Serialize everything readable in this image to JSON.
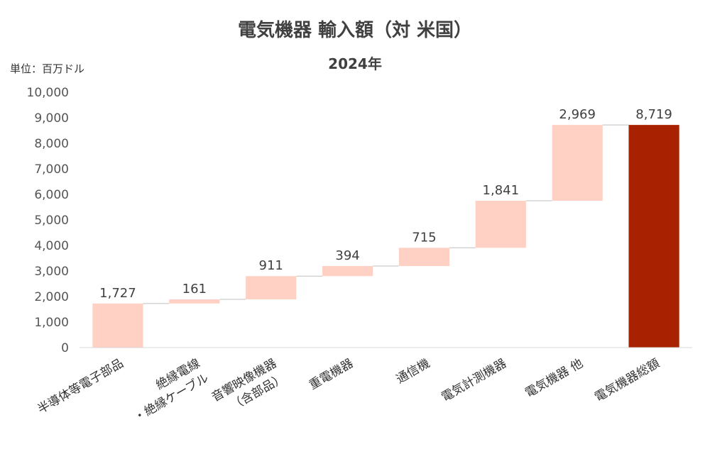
{
  "chart_data": {
    "type": "bar",
    "subtype": "waterfall",
    "title": "電気機器 輸入額（対 米国）",
    "subtitle": "2024年",
    "unit_label": "単位：百万ドル",
    "ylim": [
      0,
      10000
    ],
    "yticks": [
      "0",
      "1,000",
      "2,000",
      "3,000",
      "4,000",
      "5,000",
      "6,000",
      "7,000",
      "8,000",
      "9,000",
      "10,000"
    ],
    "grid": false,
    "legend": "none",
    "bars": [
      {
        "category": [
          "半導体等電子部品"
        ],
        "value": 1727,
        "label": "1,727",
        "kind": "delta"
      },
      {
        "category": [
          "絶縁電線",
          "・絶縁ケーブル"
        ],
        "value": 161,
        "label": "161",
        "kind": "delta"
      },
      {
        "category": [
          "音響映像機器",
          "（含部品）"
        ],
        "value": 911,
        "label": "911",
        "kind": "delta"
      },
      {
        "category": [
          "重電機器"
        ],
        "value": 394,
        "label": "394",
        "kind": "delta"
      },
      {
        "category": [
          "通信機"
        ],
        "value": 715,
        "label": "715",
        "kind": "delta"
      },
      {
        "category": [
          "電気計測機器"
        ],
        "value": 1841,
        "label": "1,841",
        "kind": "delta"
      },
      {
        "category": [
          "電気機器 他"
        ],
        "value": 2969,
        "label": "2,969",
        "kind": "delta"
      },
      {
        "category": [
          "電気機器総額"
        ],
        "value": 8719,
        "label": "8,719",
        "kind": "total"
      }
    ],
    "colors": {
      "delta": "#ffd0c4",
      "total": "#a82100",
      "connector": "#bfbfbf",
      "axis": "#d9d9d9"
    }
  }
}
